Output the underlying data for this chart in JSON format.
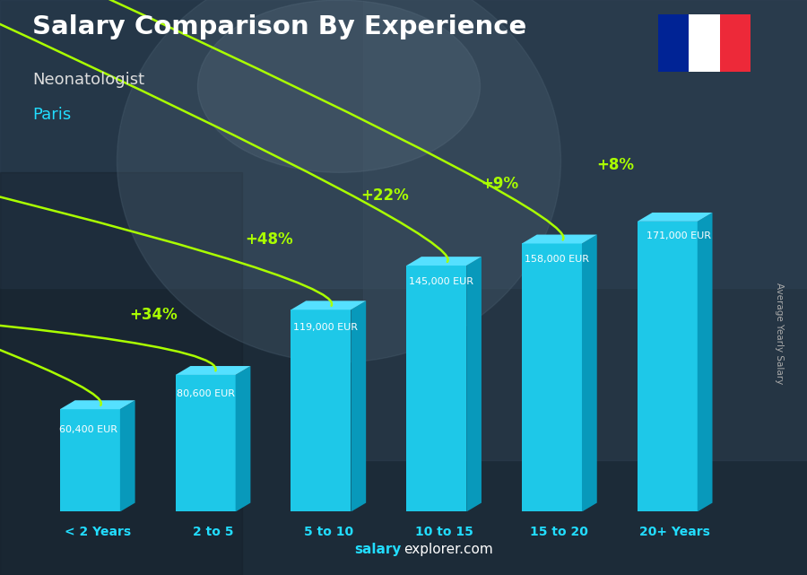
{
  "title": "Salary Comparison By Experience",
  "subtitle": "Neonatologist",
  "city": "Paris",
  "categories": [
    "< 2 Years",
    "2 to 5",
    "5 to 10",
    "10 to 15",
    "15 to 20",
    "20+ Years"
  ],
  "values": [
    60400,
    80600,
    119000,
    145000,
    158000,
    171000
  ],
  "value_labels": [
    "60,400 EUR",
    "80,600 EUR",
    "119,000 EUR",
    "145,000 EUR",
    "158,000 EUR",
    "171,000 EUR"
  ],
  "pct_labels": [
    "+34%",
    "+48%",
    "+22%",
    "+9%",
    "+8%"
  ],
  "bar_color_main": "#1EC8E8",
  "bar_color_top": "#55E0FF",
  "bar_color_side": "#0899BB",
  "title_color": "#ffffff",
  "subtitle_color": "#dddddd",
  "city_color": "#22DDFF",
  "pct_color": "#AAFF00",
  "tick_color": "#22DDFF",
  "watermark_salary": "salary",
  "watermark_rest": "explorer.com",
  "ylabel_text": "Average Yearly Salary",
  "ylim_max": 210000,
  "flag_colors": [
    "#002395",
    "#ffffff",
    "#ED2939"
  ],
  "bg_dark": "#1C2B38",
  "bg_mid": "#2A3F52"
}
